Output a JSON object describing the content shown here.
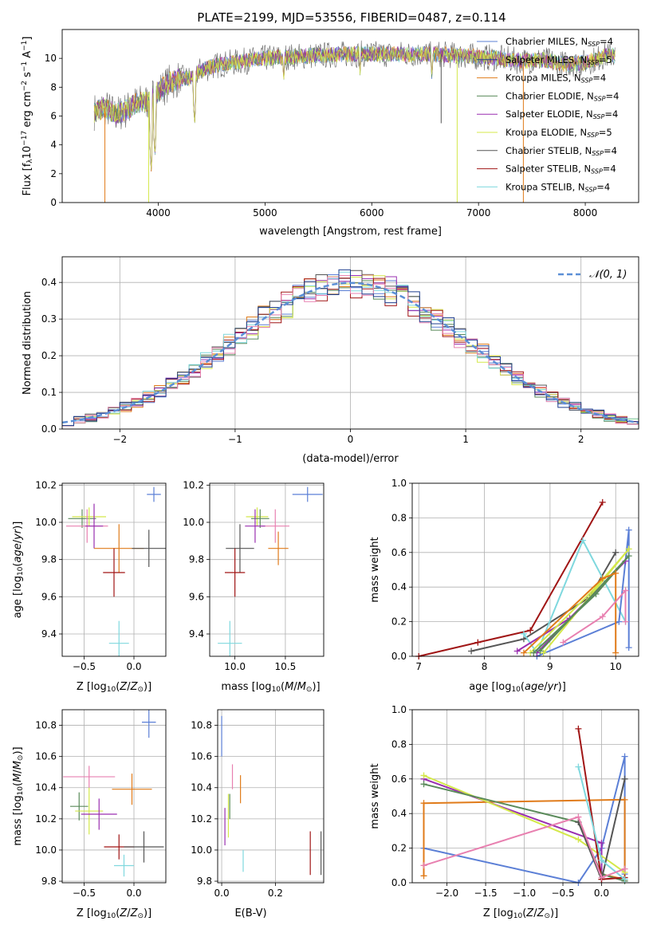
{
  "figure": {
    "title": "PLATE=2199, MJD=53556, FIBERID=0487, z=0.114"
  },
  "colors": {
    "chabrier_miles": "#5b7fd6",
    "salpeter_miles": "#1f3f8f",
    "kroupa_miles": "#e07b1a",
    "chabrier_elodie": "#5a8a5a",
    "salpeter_elodie": "#9a2fb0",
    "kroupa_elodie": "#d4e84a",
    "chabrier_stelib": "#555555",
    "salpeter_stelib": "#a01515",
    "kroupa_stelib": "#7fd8de",
    "pink": "#e880b0",
    "gauss": "#5b8fd6"
  },
  "chart_data": [
    {
      "id": "spectrum",
      "type": "line",
      "title": "PLATE=2199, MJD=53556, FIBERID=0487, z=0.114",
      "xlabel": "wavelength [Angstrom, rest frame]",
      "ylabel": "Flux [f_λ10^-17 erg cm^-2 s^-1 A^-1]",
      "xlim": [
        3100,
        8500
      ],
      "ylim": [
        0,
        12
      ],
      "xticks": [
        "4000",
        "5000",
        "6000",
        "7000",
        "8000"
      ],
      "yticks": [
        "0",
        "2",
        "4",
        "6",
        "8",
        "10"
      ],
      "grid": false,
      "legend_position": "right",
      "legend": [
        "Chabrier MILES, N_SSP=4",
        "Salpeter MILES, N_SSP=5",
        "Kroupa MILES, N_SSP=4",
        "Chabrier ELODIE, N_SSP=4",
        "Salpeter ELODIE, N_SSP=4",
        "Kroupa ELODIE, N_SSP=5",
        "Chabrier STELIB, N_SSP=4",
        "Salpeter STELIB, N_SSP=4",
        "Kroupa STELIB, N_SSP=4"
      ],
      "continuum": {
        "x": [
          3400,
          3500,
          3600,
          3700,
          3800,
          3900,
          4000,
          4100,
          4200,
          4300,
          4400,
          4600,
          4800,
          5000,
          5200,
          5500,
          5800,
          6000,
          6300,
          6600,
          6800,
          7000,
          7200,
          7400,
          7600,
          7800,
          8000,
          8200
        ],
        "y": [
          6.3,
          6.6,
          6.1,
          6.4,
          6.9,
          7.0,
          7.7,
          8.3,
          8.6,
          8.6,
          9.2,
          9.6,
          9.8,
          10.0,
          10.1,
          10.2,
          10.3,
          10.3,
          10.3,
          10.3,
          10.2,
          10.1,
          10.0,
          9.8,
          9.9,
          9.6,
          9.7,
          10.2
        ]
      },
      "dips": [
        {
          "x": 3933,
          "y": 2.0
        },
        {
          "x": 3968,
          "y": 3.0
        },
        {
          "x": 4340,
          "y": 5.2
        },
        {
          "x": 5175,
          "y": 8.3
        },
        {
          "x": 5890,
          "y": 8.8
        },
        {
          "x": 6563,
          "y": 8.4
        }
      ],
      "spikes": [
        {
          "x": 3500,
          "y": 0,
          "series": "kroupa_miles"
        },
        {
          "x": 3910,
          "y": 0,
          "series": "kroupa_elodie"
        },
        {
          "x": 6800,
          "y": 0,
          "series": "kroupa_elodie"
        },
        {
          "x": 7420,
          "y": 0,
          "series": "kroupa_miles"
        },
        {
          "x": 6650,
          "y": 5.5,
          "series": "chabrier_stelib"
        }
      ]
    },
    {
      "id": "residuals",
      "type": "bar",
      "xlabel": "(data-model)/error",
      "ylabel": "Normed distribution",
      "xlim": [
        -2.5,
        2.5
      ],
      "ylim": [
        0,
        0.47
      ],
      "xticks": [
        "−2",
        "−1",
        "0",
        "1",
        "2"
      ],
      "yticks": [
        "0.0",
        "0.1",
        "0.2",
        "0.3",
        "0.4"
      ],
      "grid": true,
      "legend_position": "top-right",
      "gauss_label": "𝒩(0, 1)",
      "bin_width": 0.1,
      "x_start": -2.5,
      "n_bins": 50,
      "series_noise": [
        0.0,
        0.012,
        -0.011,
        0.018,
        -0.015,
        0.008,
        -0.006,
        0.02,
        -0.019,
        0.005
      ]
    },
    {
      "id": "age_vs_Z",
      "type": "scatter",
      "xlabel": "Z [log10(Z/Z⊙)]",
      "ylabel": "age  [log10(age/yr)]",
      "xlim": [
        -0.72,
        0.32
      ],
      "ylim": [
        9.28,
        10.21
      ],
      "xticks": [
        "−0.5",
        "0.0"
      ],
      "yticks": [
        "9.4",
        "9.6",
        "9.8",
        "10.0",
        "10.2"
      ],
      "grid": true,
      "points": [
        {
          "x": 0.2,
          "y": 10.15,
          "dx": 0.07,
          "dy": 0.04,
          "series": "chabrier_miles"
        },
        {
          "x": -0.52,
          "y": 10.02,
          "dx": 0.14,
          "dy": 0.05,
          "series": "chabrier_elodie"
        },
        {
          "x": -0.45,
          "y": 10.03,
          "dx": 0.17,
          "dy": 0.05,
          "series": "kroupa_elodie"
        },
        {
          "x": -0.47,
          "y": 9.98,
          "dx": 0.21,
          "dy": 0.09,
          "series": "pink"
        },
        {
          "x": -0.4,
          "y": 9.98,
          "dx": 0.09,
          "dy": 0.12,
          "series": "salpeter_elodie"
        },
        {
          "x": -0.15,
          "y": 9.86,
          "dx": 0.25,
          "dy": 0.13,
          "series": "kroupa_miles"
        },
        {
          "x": 0.15,
          "y": 9.86,
          "dx": 0.17,
          "dy": 0.1,
          "series": "chabrier_stelib"
        },
        {
          "x": -0.2,
          "y": 9.73,
          "dx": 0.11,
          "dy": 0.13,
          "series": "salpeter_stelib"
        },
        {
          "x": -0.15,
          "y": 9.35,
          "dx": 0.1,
          "dy": 0.12,
          "series": "kroupa_stelib"
        }
      ]
    },
    {
      "id": "age_vs_mass",
      "type": "scatter",
      "xlabel": "mass [log10(M/M⊙)]",
      "ylabel": "",
      "xlim": [
        9.75,
        10.88
      ],
      "ylim": [
        9.28,
        10.21
      ],
      "xticks": [
        "10.0",
        "10.5"
      ],
      "yticks": [
        "9.4",
        "9.6",
        "9.8",
        "10.0",
        "10.2"
      ],
      "grid": true,
      "points": [
        {
          "x": 10.72,
          "y": 10.15,
          "dx": 0.15,
          "dy": 0.04,
          "series": "chabrier_miles"
        },
        {
          "x": 10.22,
          "y": 10.03,
          "dx": 0.11,
          "dy": 0.05,
          "series": "kroupa_elodie"
        },
        {
          "x": 10.25,
          "y": 10.02,
          "dx": 0.09,
          "dy": 0.05,
          "series": "chabrier_elodie"
        },
        {
          "x": 10.4,
          "y": 9.98,
          "dx": 0.14,
          "dy": 0.09,
          "series": "pink"
        },
        {
          "x": 10.2,
          "y": 9.98,
          "dx": 0.1,
          "dy": 0.09,
          "series": "salpeter_elodie"
        },
        {
          "x": 10.05,
          "y": 9.86,
          "dx": 0.14,
          "dy": 0.13,
          "series": "chabrier_stelib"
        },
        {
          "x": 10.43,
          "y": 9.86,
          "dx": 0.1,
          "dy": 0.09,
          "series": "kroupa_miles"
        },
        {
          "x": 10.0,
          "y": 9.73,
          "dx": 0.1,
          "dy": 0.13,
          "series": "salpeter_stelib"
        },
        {
          "x": 9.95,
          "y": 9.35,
          "dx": 0.12,
          "dy": 0.12,
          "series": "kroupa_stelib"
        }
      ]
    },
    {
      "id": "weight_vs_age",
      "type": "line",
      "xlabel": "age  [log10(age/yr)]",
      "ylabel": "mass weight",
      "xlim": [
        6.9,
        10.35
      ],
      "ylim": [
        0,
        1
      ],
      "xticks": [
        "7",
        "8",
        "9",
        "10"
      ],
      "yticks": [
        "0.0",
        "0.2",
        "0.4",
        "0.6",
        "0.8",
        "1.0"
      ],
      "grid": true,
      "series": [
        {
          "key": "salpeter_stelib",
          "x": [
            7.0,
            7.9,
            8.7,
            9.8
          ],
          "y": [
            0.0,
            0.08,
            0.15,
            0.89
          ]
        },
        {
          "key": "chabrier_stelib",
          "x": [
            7.8,
            8.6,
            9.6,
            10.0
          ],
          "y": [
            0.03,
            0.1,
            0.34,
            0.6
          ]
        },
        {
          "key": "kroupa_stelib",
          "x": [
            8.6,
            8.8,
            9.5,
            10.15
          ],
          "y": [
            0.13,
            0.02,
            0.67,
            0.2
          ]
        },
        {
          "key": "chabrier_miles",
          "x": [
            8.8,
            10.05,
            10.2,
            10.2
          ],
          "y": [
            0.0,
            0.2,
            0.73,
            0.05
          ]
        },
        {
          "key": "salpeter_elodie",
          "x": [
            8.5,
            9.3,
            10.15,
            8.8
          ],
          "y": [
            0.03,
            0.22,
            0.55,
            0.02
          ]
        },
        {
          "key": "kroupa_elodie",
          "x": [
            8.7,
            9.7,
            10.2,
            8.9
          ],
          "y": [
            0.02,
            0.4,
            0.62,
            0.02
          ]
        },
        {
          "key": "chabrier_elodie",
          "x": [
            8.75,
            9.7,
            10.2,
            8.85
          ],
          "y": [
            0.02,
            0.36,
            0.58,
            0.03
          ]
        },
        {
          "key": "kroupa_miles",
          "x": [
            8.6,
            9.8,
            10.0,
            10.0
          ],
          "y": [
            0.02,
            0.45,
            0.48,
            0.02
          ]
        },
        {
          "key": "pink",
          "x": [
            9.2,
            9.8,
            10.15,
            10.15
          ],
          "y": [
            0.08,
            0.23,
            0.38,
            0.2
          ]
        }
      ]
    },
    {
      "id": "mass_vs_Z",
      "type": "scatter",
      "xlabel": "Z [log10(Z/Z⊙)]",
      "ylabel": "mass [log10(M/M⊙)]",
      "xlim": [
        -0.72,
        0.32
      ],
      "ylim": [
        9.79,
        10.9
      ],
      "xticks": [
        "−0.5",
        "0.0"
      ],
      "yticks": [
        "9.8",
        "10.0",
        "10.2",
        "10.4",
        "10.6",
        "10.8"
      ],
      "grid": true,
      "points": [
        {
          "x": 0.15,
          "y": 10.82,
          "dx": 0.07,
          "dy": 0.1,
          "series": "chabrier_miles"
        },
        {
          "x": -0.45,
          "y": 10.47,
          "dx": 0.26,
          "dy": 0.07,
          "series": "pink"
        },
        {
          "x": -0.02,
          "y": 10.39,
          "dx": 0.2,
          "dy": 0.1,
          "series": "kroupa_miles"
        },
        {
          "x": -0.55,
          "y": 10.28,
          "dx": 0.09,
          "dy": 0.09,
          "series": "chabrier_elodie"
        },
        {
          "x": -0.45,
          "y": 10.25,
          "dx": 0.14,
          "dy": 0.15,
          "series": "kroupa_elodie"
        },
        {
          "x": -0.35,
          "y": 10.23,
          "dx": 0.18,
          "dy": 0.1,
          "series": "salpeter_elodie"
        },
        {
          "x": -0.15,
          "y": 10.02,
          "dx": 0.15,
          "dy": 0.08,
          "series": "salpeter_stelib"
        },
        {
          "x": 0.1,
          "y": 10.02,
          "dx": 0.2,
          "dy": 0.1,
          "series": "chabrier_stelib"
        },
        {
          "x": -0.1,
          "y": 9.9,
          "dx": 0.1,
          "dy": 0.07,
          "series": "kroupa_stelib"
        }
      ]
    },
    {
      "id": "mass_vs_ebv",
      "type": "scatter",
      "xlabel": "E(B-V)",
      "ylabel": "",
      "xlim": [
        -0.015,
        0.38
      ],
      "ylim": [
        9.79,
        10.9
      ],
      "xticks": [
        "0.0",
        "0.2"
      ],
      "yticks": [
        "9.8",
        "10.0",
        "10.2",
        "10.4",
        "10.6",
        "10.8"
      ],
      "grid": true,
      "points": [
        {
          "x": 0.0,
          "y": 10.73,
          "dx": 0.0,
          "dy": 0.13,
          "series": "chabrier_miles"
        },
        {
          "x": 0.04,
          "y": 10.47,
          "dx": 0.0,
          "dy": 0.08,
          "series": "pink"
        },
        {
          "x": 0.07,
          "y": 10.39,
          "dx": 0.0,
          "dy": 0.09,
          "series": "kroupa_miles"
        },
        {
          "x": 0.03,
          "y": 10.28,
          "dx": 0.0,
          "dy": 0.08,
          "series": "chabrier_elodie"
        },
        {
          "x": 0.025,
          "y": 10.22,
          "dx": 0.0,
          "dy": 0.14,
          "series": "kroupa_elodie"
        },
        {
          "x": 0.012,
          "y": 10.15,
          "dx": 0.0,
          "dy": 0.12,
          "series": "salpeter_elodie"
        },
        {
          "x": 0.08,
          "y": 9.93,
          "dx": 0.0,
          "dy": 0.07,
          "series": "kroupa_stelib"
        },
        {
          "x": 0.33,
          "y": 9.98,
          "dx": 0.0,
          "dy": 0.14,
          "series": "salpeter_stelib"
        },
        {
          "x": 0.37,
          "y": 9.98,
          "dx": 0.0,
          "dy": 0.14,
          "series": "chabrier_stelib"
        }
      ]
    },
    {
      "id": "weight_vs_Z",
      "type": "line",
      "xlabel": "Z [log10(Z/Z⊙)]",
      "ylabel": "mass weight",
      "xlim": [
        -2.45,
        0.48
      ],
      "ylim": [
        0,
        1
      ],
      "xticks": [
        "−2.0",
        "−1.5",
        "−1.0",
        "−0.5",
        "0.0"
      ],
      "yticks": [
        "0.0",
        "0.2",
        "0.4",
        "0.6",
        "0.8",
        "1.0"
      ],
      "grid": true,
      "series": [
        {
          "key": "chabrier_miles",
          "x": [
            -2.3,
            -0.3,
            0.0,
            0.3,
            0.3
          ],
          "y": [
            0.2,
            0.0,
            0.2,
            0.73,
            0.05
          ]
        },
        {
          "key": "kroupa_miles",
          "x": [
            -2.3,
            -2.3,
            0.3,
            0.3,
            0.0
          ],
          "y": [
            0.04,
            0.46,
            0.48,
            0.02,
            0.05
          ]
        },
        {
          "key": "salpeter_elodie",
          "x": [
            -2.3,
            0.0,
            0.0
          ],
          "y": [
            0.6,
            0.23,
            0.05
          ]
        },
        {
          "key": "kroupa_elodie",
          "x": [
            -2.3,
            -0.3,
            0.3
          ],
          "y": [
            0.62,
            0.25,
            0.06
          ]
        },
        {
          "key": "chabrier_elodie",
          "x": [
            -2.3,
            -0.3,
            0.0,
            0.3
          ],
          "y": [
            0.57,
            0.35,
            0.05,
            0.01
          ]
        },
        {
          "key": "chabrier_stelib",
          "x": [
            -0.3,
            0.0,
            0.3
          ],
          "y": [
            0.35,
            0.02,
            0.6
          ]
        },
        {
          "key": "salpeter_stelib",
          "x": [
            -0.3,
            0.0,
            0.3
          ],
          "y": [
            0.89,
            0.02,
            0.03
          ]
        },
        {
          "key": "kroupa_stelib",
          "x": [
            -0.3,
            0.0,
            0.3
          ],
          "y": [
            0.67,
            0.13,
            0.02
          ]
        },
        {
          "key": "pink",
          "x": [
            -2.3,
            -0.3,
            0.0,
            0.3
          ],
          "y": [
            0.1,
            0.38,
            0.03,
            0.08
          ]
        }
      ]
    }
  ]
}
